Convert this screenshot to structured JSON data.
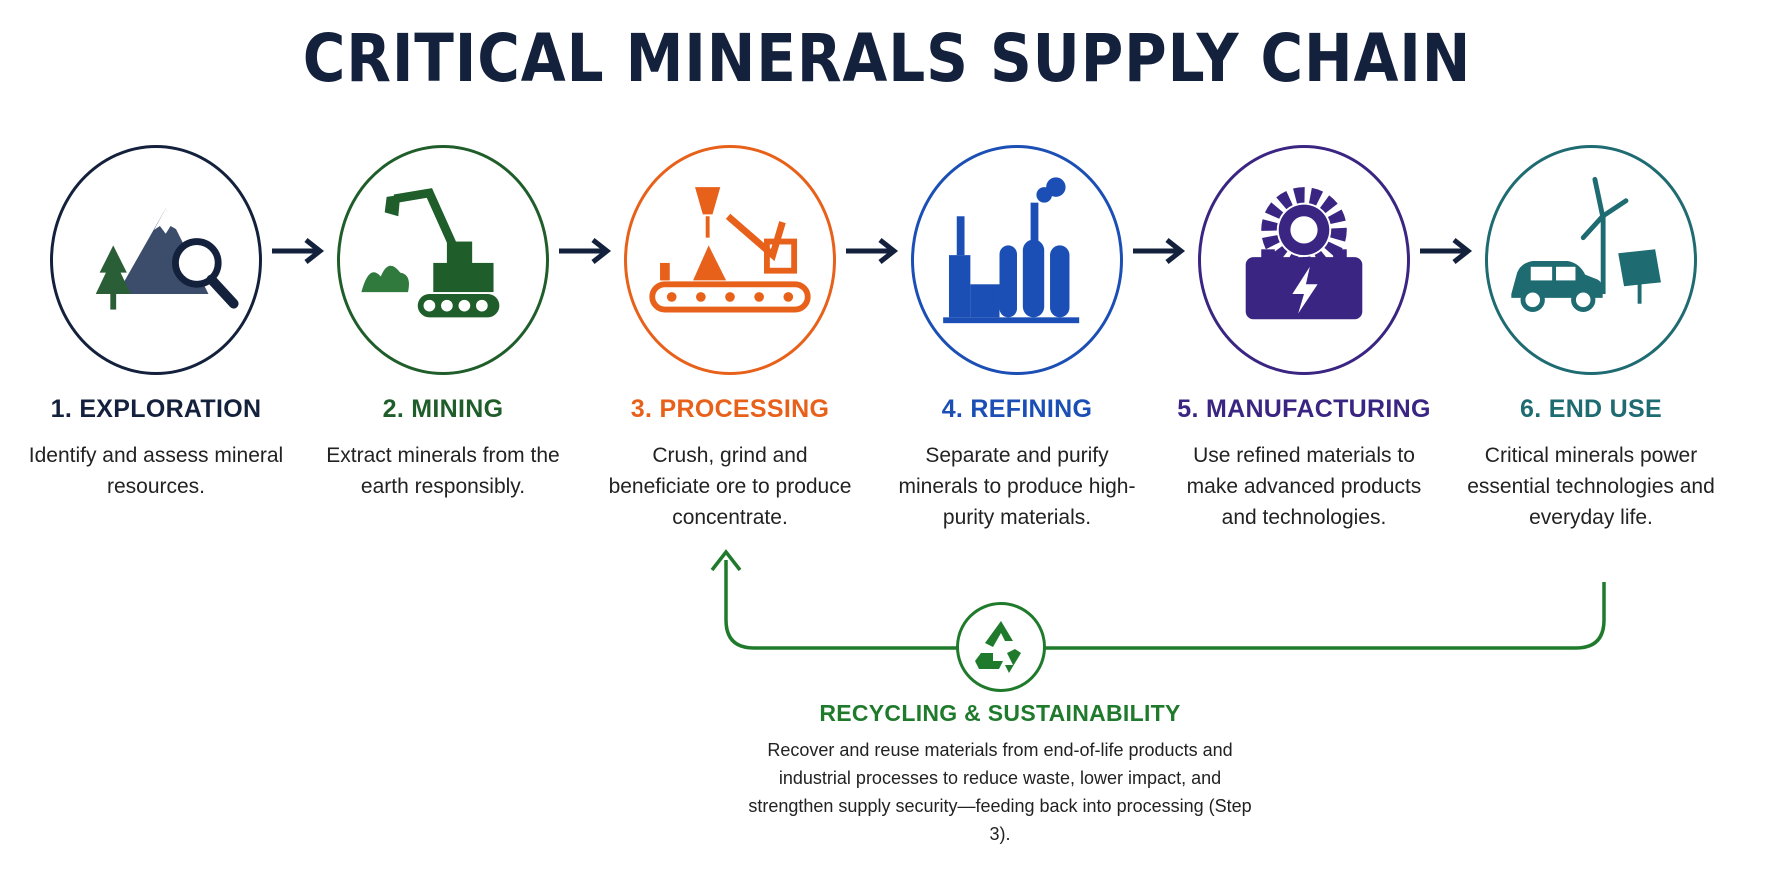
{
  "title": "CRITICAL MINERALS SUPPLY CHAIN",
  "colors": {
    "exploration": "#14213d",
    "mining": "#1f5e2a",
    "processing": "#e8611a",
    "refining": "#1b4fb5",
    "manufacturing": "#3b2583",
    "end_use": "#1e6b72",
    "recycling": "#1f7a2c"
  },
  "stages": [
    {
      "title": "1. EXPLORATION",
      "desc": "Identify and assess mineral resources.",
      "icon": "mountain-magnifier-icon"
    },
    {
      "title": "2. MINING",
      "desc": "Extract minerals from the earth responsibly.",
      "icon": "excavator-icon"
    },
    {
      "title": "3. PROCESSING",
      "desc": "Crush, grind and beneficiate ore to produce concentrate.",
      "icon": "conveyor-crusher-icon"
    },
    {
      "title": "4. REFINING",
      "desc": "Separate and purify minerals to produce high-purity materials.",
      "icon": "refinery-icon"
    },
    {
      "title": "5. MANUFACTURING",
      "desc": "Use refined materials to make advanced products and technologies.",
      "icon": "gear-battery-icon"
    },
    {
      "title": "6. END USE",
      "desc": "Critical minerals power essential technologies and everyday life.",
      "icon": "car-wind-solar-icon"
    }
  ],
  "recycling": {
    "title": "RECYCLING & SUSTAINABILITY",
    "desc": "Recover and reuse materials from end-of-life products and industrial processes to reduce waste, lower impact, and strengthen supply security—feeding back into processing (Step 3).",
    "icon": "recycle-icon"
  }
}
